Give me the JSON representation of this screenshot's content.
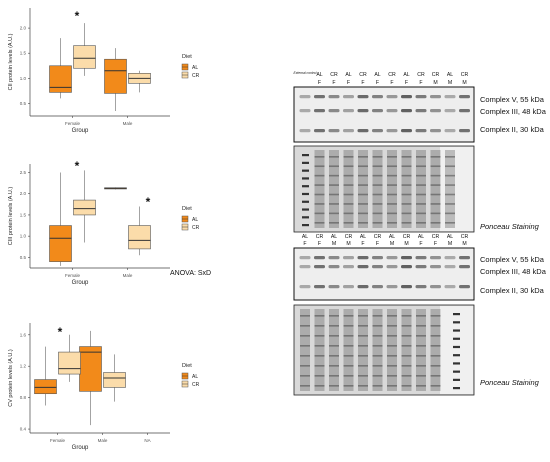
{
  "chart_data": [
    {
      "type": "box",
      "ylabel": "CII protein levels (A.U.)",
      "xlabel": "Group",
      "categories": [
        "Female",
        "Male"
      ],
      "yticks": [
        0.5,
        1.0,
        1.5,
        2.0
      ],
      "ytick_labels": [
        "0.5",
        "1.0",
        "1.5",
        "2.0"
      ],
      "ylim": [
        0.25,
        2.4
      ],
      "legend_title": "Diet",
      "legend": [
        "AL",
        "CR"
      ],
      "annotations": [
        "*"
      ],
      "series": [
        {
          "name": "AL",
          "color": "#f28a1a",
          "boxes": [
            {
              "category": "Female",
              "min": 0.6,
              "q1": 0.72,
              "median": 0.82,
              "q3": 1.25,
              "max": 1.8
            },
            {
              "category": "Male",
              "min": 0.35,
              "q1": 0.7,
              "median": 1.15,
              "q3": 1.38,
              "max": 1.6
            }
          ]
        },
        {
          "name": "CR",
          "color": "#fbdcaa",
          "boxes": [
            {
              "category": "Female",
              "min": 1.05,
              "q1": 1.2,
              "median": 1.4,
              "q3": 1.65,
              "max": 2.1
            },
            {
              "category": "Male",
              "min": 0.72,
              "q1": 0.9,
              "median": 1.0,
              "q3": 1.1,
              "max": 1.15
            }
          ]
        }
      ]
    },
    {
      "type": "box",
      "ylabel": "CIII protein levels (A.U.)",
      "xlabel": "Group",
      "categories": [
        "Female",
        "Male"
      ],
      "yticks": [
        0.5,
        1.0,
        1.5,
        2.0,
        2.5
      ],
      "ytick_labels": [
        "0.5",
        "1.0",
        "1.5",
        "2.0",
        "2.5"
      ],
      "ylim": [
        0.25,
        2.7
      ],
      "legend_title": "Diet",
      "legend": [
        "AL",
        "CR"
      ],
      "annotations": [
        "*",
        "*",
        "ANOVA: SxD"
      ],
      "series": [
        {
          "name": "AL",
          "color": "#f28a1a",
          "boxes": [
            {
              "category": "Female",
              "min": 0.3,
              "q1": 0.4,
              "median": 0.95,
              "q3": 1.25,
              "max": 2.5
            },
            {
              "category": "Male",
              "min": 2.1,
              "q1": 2.12,
              "median": 2.13,
              "q3": 2.14,
              "max": 2.15
            }
          ]
        },
        {
          "name": "CR",
          "color": "#fbdcaa",
          "boxes": [
            {
              "category": "Female",
              "min": 0.85,
              "q1": 1.5,
              "median": 1.65,
              "q3": 1.85,
              "max": 2.55
            },
            {
              "category": "Male",
              "min": 0.55,
              "q1": 0.7,
              "median": 0.9,
              "q3": 1.25,
              "max": 1.7
            }
          ]
        }
      ]
    },
    {
      "type": "box",
      "ylabel": "CV protein levels (A.U.)",
      "xlabel": "Group",
      "categories": [
        "Female",
        "Male",
        "NA"
      ],
      "yticks": [
        0.4,
        0.8,
        1.2,
        1.6
      ],
      "ytick_labels": [
        "0.4",
        "0.8",
        "1.2",
        "1.6"
      ],
      "ylim": [
        0.35,
        1.75
      ],
      "legend_title": "Diet",
      "legend": [
        "AL",
        "CR"
      ],
      "annotations": [
        "*"
      ],
      "series": [
        {
          "name": "AL",
          "color": "#f28a1a",
          "boxes": [
            {
              "category": "Female",
              "min": 0.7,
              "q1": 0.85,
              "median": 0.93,
              "q3": 1.03,
              "max": 1.45
            },
            {
              "category": "Male",
              "min": 0.45,
              "q1": 0.88,
              "median": 1.38,
              "q3": 1.45,
              "max": 1.65
            }
          ]
        },
        {
          "name": "CR",
          "color": "#fbdcaa",
          "boxes": [
            {
              "category": "Female",
              "min": 1.0,
              "q1": 1.1,
              "median": 1.17,
              "q3": 1.38,
              "max": 1.6
            },
            {
              "category": "Male",
              "min": 0.75,
              "q1": 0.93,
              "median": 1.05,
              "q3": 1.12,
              "max": 1.35
            }
          ]
        }
      ]
    }
  ],
  "blot": {
    "top_lanes": {
      "row1": [
        "External control",
        "AL",
        "CR",
        "AL",
        "CR",
        "AL",
        "CR",
        "AL",
        "CR",
        "CR",
        "AL",
        "CR"
      ],
      "row2": [
        "",
        "F",
        "F",
        "F",
        "F",
        "F",
        "F",
        "F",
        "F",
        "M",
        "M",
        "M"
      ]
    },
    "bottom_lanes": {
      "row1": [
        "AL",
        "CR",
        "AL",
        "CR",
        "AL",
        "CR",
        "AL",
        "CR",
        "AL",
        "CR",
        "AL",
        "CR"
      ],
      "row2": [
        "F",
        "F",
        "M",
        "M",
        "F",
        "F",
        "M",
        "M",
        "F",
        "F",
        "M",
        "M"
      ]
    },
    "top_bands": [
      "Complex V, 55 kDa",
      "Complex III, 48 kDa",
      "Complex II, 30 kDa"
    ],
    "bottom_bands": [
      "Complex V, 55 kDa",
      "Complex III, 48 kDa",
      "Complex II, 30 kDa"
    ],
    "ponceau_top": "Ponceau Staining",
    "ponceau_bottom": "Ponceau Staining"
  }
}
